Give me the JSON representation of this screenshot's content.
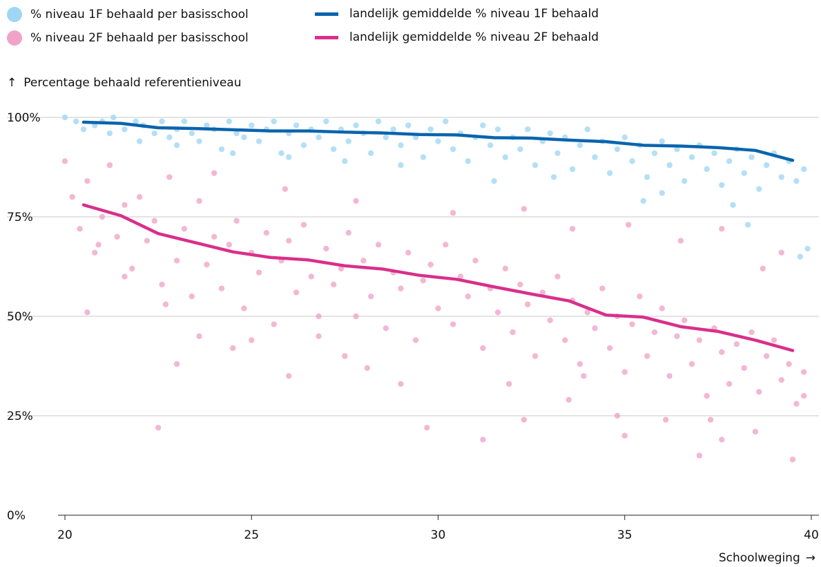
{
  "legend": {
    "items": [
      {
        "label": "% niveau 1F behaald per basisschool",
        "kind": "dot",
        "color": "#9fd6f3"
      },
      {
        "label": "% niveau 2F behaald per basisschool",
        "kind": "dot",
        "color": "#f0a3c8"
      },
      {
        "label": "landelijk gemiddelde % niveau 1F behaald",
        "kind": "line",
        "color": "#0a64ad"
      },
      {
        "label": "landelijk gemiddelde % niveau 2F behaald",
        "kind": "line",
        "color": "#d92f8b"
      }
    ]
  },
  "axes": {
    "ylabel": "Percentage behaald referentieniveau",
    "ylabel_arrow": "↑",
    "xlabel": "Schoolweging",
    "xlabel_arrow": "→"
  },
  "chart_data": {
    "type": "scatter",
    "xlim": [
      20,
      40
    ],
    "ylim": [
      0,
      100
    ],
    "x_ticks": [
      {
        "value": 20,
        "label": "20"
      },
      {
        "value": 25,
        "label": "25"
      },
      {
        "value": 30,
        "label": "30"
      },
      {
        "value": 35,
        "label": "35"
      },
      {
        "value": 40,
        "label": "40"
      }
    ],
    "y_ticks": [
      {
        "value": 0,
        "label": "0%"
      },
      {
        "value": 25,
        "label": "25%"
      },
      {
        "value": 50,
        "label": "50%"
      },
      {
        "value": 75,
        "label": "75%"
      },
      {
        "value": 100,
        "label": "100%"
      }
    ],
    "grid": true,
    "series": [
      {
        "name": "% niveau 1F behaald per basisschool",
        "type": "scatter",
        "color": "#9fd6f3",
        "points": [
          [
            20.0,
            100
          ],
          [
            20.3,
            99
          ],
          [
            20.8,
            98
          ],
          [
            21.0,
            99
          ],
          [
            21.3,
            100
          ],
          [
            21.6,
            97
          ],
          [
            21.9,
            99
          ],
          [
            22.1,
            98
          ],
          [
            22.4,
            96
          ],
          [
            22.6,
            99
          ],
          [
            22.8,
            95
          ],
          [
            23.0,
            97
          ],
          [
            23.2,
            99
          ],
          [
            23.4,
            96
          ],
          [
            23.6,
            94
          ],
          [
            23.8,
            98
          ],
          [
            24.0,
            97
          ],
          [
            24.2,
            92
          ],
          [
            24.4,
            99
          ],
          [
            24.6,
            96
          ],
          [
            24.8,
            95
          ],
          [
            25.0,
            98
          ],
          [
            25.2,
            94
          ],
          [
            25.4,
            97
          ],
          [
            25.6,
            99
          ],
          [
            25.8,
            91
          ],
          [
            26.0,
            96
          ],
          [
            26.2,
            98
          ],
          [
            26.4,
            93
          ],
          [
            26.6,
            97
          ],
          [
            26.8,
            95
          ],
          [
            27.0,
            99
          ],
          [
            27.2,
            92
          ],
          [
            27.4,
            97
          ],
          [
            27.6,
            94
          ],
          [
            27.8,
            98
          ],
          [
            28.0,
            96
          ],
          [
            28.2,
            91
          ],
          [
            28.4,
            99
          ],
          [
            28.6,
            95
          ],
          [
            28.8,
            97
          ],
          [
            29.0,
            93
          ],
          [
            29.2,
            98
          ],
          [
            29.4,
            95
          ],
          [
            29.6,
            90
          ],
          [
            29.8,
            97
          ],
          [
            30.0,
            94
          ],
          [
            30.2,
            99
          ],
          [
            30.4,
            92
          ],
          [
            30.6,
            96
          ],
          [
            30.8,
            89
          ],
          [
            31.0,
            95
          ],
          [
            31.2,
            98
          ],
          [
            31.4,
            93
          ],
          [
            31.6,
            97
          ],
          [
            31.8,
            90
          ],
          [
            32.0,
            95
          ],
          [
            32.2,
            92
          ],
          [
            32.4,
            97
          ],
          [
            32.6,
            88
          ],
          [
            32.8,
            94
          ],
          [
            33.0,
            96
          ],
          [
            33.2,
            91
          ],
          [
            33.4,
            95
          ],
          [
            33.6,
            87
          ],
          [
            33.8,
            93
          ],
          [
            34.0,
            97
          ],
          [
            34.2,
            90
          ],
          [
            34.4,
            94
          ],
          [
            34.6,
            86
          ],
          [
            34.8,
            92
          ],
          [
            35.0,
            95
          ],
          [
            35.2,
            89
          ],
          [
            35.4,
            93
          ],
          [
            35.6,
            85
          ],
          [
            35.8,
            91
          ],
          [
            36.0,
            94
          ],
          [
            36.2,
            88
          ],
          [
            36.4,
            92
          ],
          [
            36.6,
            84
          ],
          [
            36.8,
            90
          ],
          [
            37.0,
            93
          ],
          [
            37.2,
            87
          ],
          [
            37.4,
            91
          ],
          [
            37.6,
            83
          ],
          [
            37.8,
            89
          ],
          [
            38.0,
            92
          ],
          [
            38.2,
            86
          ],
          [
            38.4,
            90
          ],
          [
            38.6,
            82
          ],
          [
            38.8,
            88
          ],
          [
            39.0,
            91
          ],
          [
            39.2,
            85
          ],
          [
            39.4,
            89
          ],
          [
            39.6,
            84
          ],
          [
            39.8,
            87
          ],
          [
            37.9,
            78
          ],
          [
            38.3,
            73
          ],
          [
            36.0,
            81
          ],
          [
            35.5,
            79
          ],
          [
            33.1,
            85
          ],
          [
            31.5,
            84
          ],
          [
            29.0,
            88
          ],
          [
            27.5,
            89
          ],
          [
            26.0,
            90
          ],
          [
            24.5,
            91
          ],
          [
            23.0,
            93
          ],
          [
            22.0,
            94
          ],
          [
            21.2,
            96
          ],
          [
            20.5,
            97
          ],
          [
            39.7,
            65
          ],
          [
            39.9,
            67
          ]
        ]
      },
      {
        "name": "% niveau 2F behaald per basisschool",
        "type": "scatter",
        "color": "#f0a3c8",
        "points": [
          [
            20.0,
            89
          ],
          [
            20.2,
            80
          ],
          [
            20.4,
            72
          ],
          [
            20.6,
            84
          ],
          [
            20.8,
            66
          ],
          [
            21.0,
            75
          ],
          [
            21.2,
            88
          ],
          [
            21.4,
            70
          ],
          [
            21.6,
            78
          ],
          [
            21.8,
            62
          ],
          [
            22.0,
            80
          ],
          [
            22.2,
            69
          ],
          [
            22.4,
            74
          ],
          [
            22.6,
            58
          ],
          [
            22.8,
            85
          ],
          [
            23.0,
            64
          ],
          [
            23.2,
            72
          ],
          [
            23.4,
            55
          ],
          [
            23.6,
            79
          ],
          [
            23.8,
            63
          ],
          [
            24.0,
            70
          ],
          [
            24.2,
            57
          ],
          [
            24.4,
            68
          ],
          [
            24.6,
            74
          ],
          [
            24.8,
            52
          ],
          [
            25.0,
            66
          ],
          [
            25.2,
            61
          ],
          [
            25.4,
            71
          ],
          [
            25.6,
            48
          ],
          [
            25.8,
            64
          ],
          [
            26.0,
            69
          ],
          [
            26.2,
            56
          ],
          [
            26.4,
            73
          ],
          [
            26.6,
            60
          ],
          [
            26.8,
            45
          ],
          [
            27.0,
            67
          ],
          [
            27.2,
            58
          ],
          [
            27.4,
            62
          ],
          [
            27.6,
            71
          ],
          [
            27.8,
            50
          ],
          [
            28.0,
            64
          ],
          [
            28.2,
            55
          ],
          [
            28.4,
            68
          ],
          [
            28.6,
            47
          ],
          [
            28.8,
            61
          ],
          [
            29.0,
            57
          ],
          [
            29.2,
            66
          ],
          [
            29.4,
            44
          ],
          [
            29.6,
            59
          ],
          [
            29.8,
            63
          ],
          [
            30.0,
            52
          ],
          [
            30.2,
            68
          ],
          [
            30.4,
            48
          ],
          [
            30.6,
            60
          ],
          [
            30.8,
            55
          ],
          [
            31.0,
            64
          ],
          [
            31.2,
            42
          ],
          [
            31.4,
            57
          ],
          [
            31.6,
            51
          ],
          [
            31.8,
            62
          ],
          [
            32.0,
            46
          ],
          [
            32.2,
            58
          ],
          [
            32.4,
            53
          ],
          [
            32.6,
            40
          ],
          [
            32.8,
            56
          ],
          [
            33.0,
            49
          ],
          [
            33.2,
            60
          ],
          [
            33.4,
            44
          ],
          [
            33.6,
            54
          ],
          [
            33.8,
            38
          ],
          [
            34.0,
            51
          ],
          [
            34.2,
            47
          ],
          [
            34.4,
            57
          ],
          [
            34.6,
            42
          ],
          [
            34.8,
            50
          ],
          [
            35.0,
            36
          ],
          [
            35.2,
            48
          ],
          [
            35.4,
            55
          ],
          [
            35.6,
            40
          ],
          [
            35.8,
            46
          ],
          [
            36.0,
            52
          ],
          [
            36.2,
            35
          ],
          [
            36.4,
            45
          ],
          [
            36.6,
            49
          ],
          [
            36.8,
            38
          ],
          [
            37.0,
            44
          ],
          [
            37.2,
            30
          ],
          [
            37.4,
            47
          ],
          [
            37.6,
            41
          ],
          [
            37.8,
            33
          ],
          [
            38.0,
            43
          ],
          [
            38.2,
            37
          ],
          [
            38.4,
            46
          ],
          [
            38.6,
            31
          ],
          [
            38.8,
            40
          ],
          [
            39.0,
            44
          ],
          [
            39.2,
            34
          ],
          [
            39.4,
            38
          ],
          [
            39.6,
            28
          ],
          [
            39.8,
            36
          ],
          [
            20.6,
            51
          ],
          [
            22.5,
            22
          ],
          [
            23.0,
            38
          ],
          [
            24.5,
            42
          ],
          [
            26.0,
            35
          ],
          [
            27.5,
            40
          ],
          [
            29.0,
            33
          ],
          [
            29.7,
            22
          ],
          [
            31.2,
            19
          ],
          [
            32.3,
            24
          ],
          [
            33.5,
            29
          ],
          [
            34.8,
            25
          ],
          [
            35.0,
            20
          ],
          [
            36.1,
            24
          ],
          [
            37.0,
            15
          ],
          [
            37.3,
            24
          ],
          [
            37.6,
            19
          ],
          [
            38.5,
            21
          ],
          [
            39.5,
            14
          ],
          [
            39.8,
            30
          ],
          [
            24.0,
            86
          ],
          [
            25.9,
            82
          ],
          [
            27.8,
            79
          ],
          [
            30.4,
            76
          ],
          [
            32.3,
            77
          ],
          [
            33.6,
            72
          ],
          [
            35.1,
            73
          ],
          [
            36.5,
            69
          ],
          [
            37.6,
            72
          ],
          [
            38.7,
            62
          ],
          [
            39.2,
            66
          ],
          [
            33.9,
            35
          ],
          [
            31.9,
            33
          ],
          [
            28.1,
            37
          ],
          [
            26.8,
            50
          ],
          [
            25.0,
            44
          ],
          [
            23.6,
            45
          ],
          [
            22.7,
            53
          ],
          [
            21.6,
            60
          ],
          [
            20.9,
            68
          ]
        ]
      },
      {
        "name": "landelijk gemiddelde % niveau 1F behaald",
        "type": "line",
        "color": "#0a64ad",
        "x": [
          20.5,
          21.5,
          22.5,
          23.5,
          24.5,
          25.5,
          26.5,
          27.5,
          28.5,
          29.5,
          30.5,
          31.5,
          32.5,
          33.5,
          34.5,
          35.5,
          36.5,
          37.5,
          38.5,
          39.5
        ],
        "values": [
          98.8,
          98.5,
          97.4,
          97.2,
          96.9,
          96.6,
          96.6,
          96.3,
          96.1,
          95.7,
          95.6,
          94.9,
          94.8,
          94.3,
          93.9,
          93.0,
          92.8,
          92.4,
          91.7,
          89.2
        ]
      },
      {
        "name": "landelijk gemiddelde % niveau 2F behaald",
        "type": "line",
        "color": "#d92f8b",
        "x": [
          20.5,
          21.5,
          22.5,
          23.5,
          24.5,
          25.5,
          26.5,
          27.5,
          28.5,
          29.5,
          30.5,
          31.5,
          32.5,
          33.5,
          34.5,
          35.5,
          36.5,
          37.5,
          38.5,
          39.5
        ],
        "values": [
          78,
          75.3,
          70.8,
          68.5,
          66.2,
          64.8,
          64.2,
          62.7,
          61.9,
          60.3,
          59.3,
          57.4,
          55.6,
          53.9,
          50.3,
          49.8,
          47.4,
          46.2,
          44.0,
          41.4
        ]
      }
    ]
  }
}
